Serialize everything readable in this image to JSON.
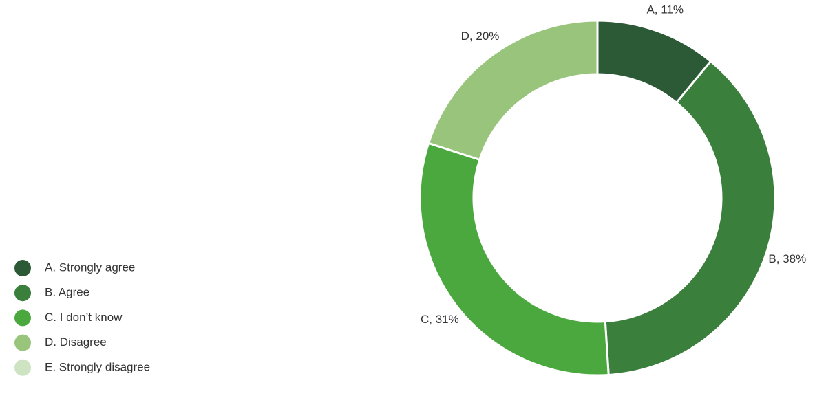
{
  "chart_data": {
    "type": "donut",
    "categories": [
      "A. Strongly agree",
      "B. Agree",
      "C. I don’t know",
      "D. Disagree",
      "E. Strongly disagree"
    ],
    "values": [
      11,
      38,
      31,
      20,
      0
    ],
    "value_labels": [
      "A, 11%",
      "B, 38%",
      "C, 31%",
      "D, 20%",
      null
    ],
    "colors": [
      "#2d5a36",
      "#3a7f3c",
      "#4aa83f",
      "#98c57b",
      "#cde3c2"
    ]
  }
}
